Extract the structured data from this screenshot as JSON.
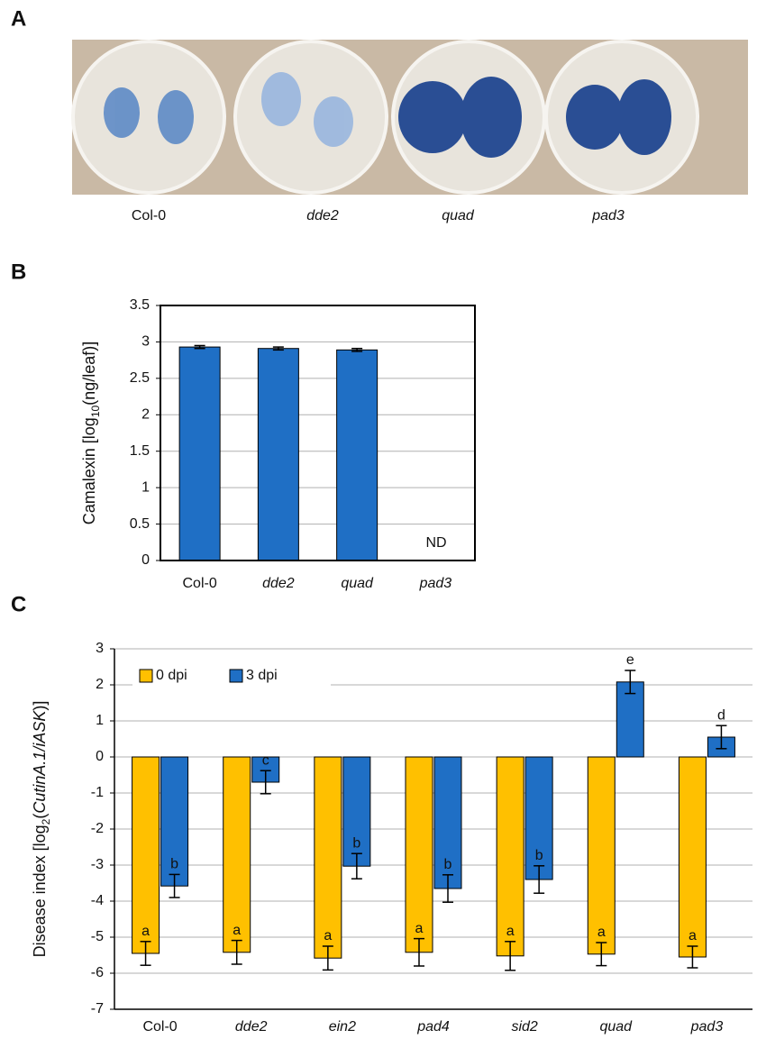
{
  "panel_labels": [
    "A",
    "B",
    "C"
  ],
  "photo": {
    "labels": [
      "Col-0",
      "dde2",
      "quad",
      "pad3"
    ]
  },
  "chart_data": [
    {
      "type": "bar",
      "y_label": [
        "Camalexin [log",
        "10",
        "(ng/leaf)]"
      ],
      "categories": [
        "Col-0",
        "dde2",
        "quad",
        "pad3"
      ],
      "values": [
        2.93,
        2.91,
        2.89,
        null
      ],
      "errors": [
        0.02,
        0.02,
        0.02,
        null
      ],
      "color": "#1f6fc5",
      "annotation": "ND",
      "ylim": [
        0,
        3.5
      ],
      "yticks": [
        0,
        0.5,
        1,
        1.5,
        2,
        2.5,
        3,
        3.5
      ],
      "grid": true,
      "frame": true
    },
    {
      "type": "bar",
      "y_label": [
        "Disease index [log",
        "2",
        "(",
        "CutinA.1/iASK",
        ")]"
      ],
      "categories": [
        "Col-0",
        "dde2",
        "ein2",
        "pad4",
        "sid2",
        "quad",
        "pad3"
      ],
      "series": [
        {
          "name": "0 dpi",
          "color": "#ffc000",
          "values": [
            -5.45,
            -5.42,
            -5.58,
            -5.42,
            -5.52,
            -5.47,
            -5.55
          ],
          "errors": [
            0.33,
            0.33,
            0.33,
            0.38,
            0.4,
            0.32,
            0.3
          ],
          "letters": [
            "a",
            "a",
            "a",
            "a",
            "a",
            "a",
            "a"
          ]
        },
        {
          "name": "3 dpi",
          "color": "#1f6fc5",
          "values": [
            -3.58,
            -0.7,
            -3.03,
            -3.65,
            -3.4,
            2.08,
            0.55
          ],
          "errors": [
            0.32,
            0.32,
            0.35,
            0.38,
            0.38,
            0.32,
            0.32
          ],
          "letters": [
            "b",
            "c",
            "b",
            "b",
            "b",
            "e",
            "d"
          ]
        }
      ],
      "ylim": [
        -7,
        3
      ],
      "yticks": [
        -7,
        -6,
        -5,
        -4,
        -3,
        -2,
        -1,
        0,
        1,
        2,
        3
      ],
      "grid": true,
      "legend": "upper left"
    }
  ]
}
